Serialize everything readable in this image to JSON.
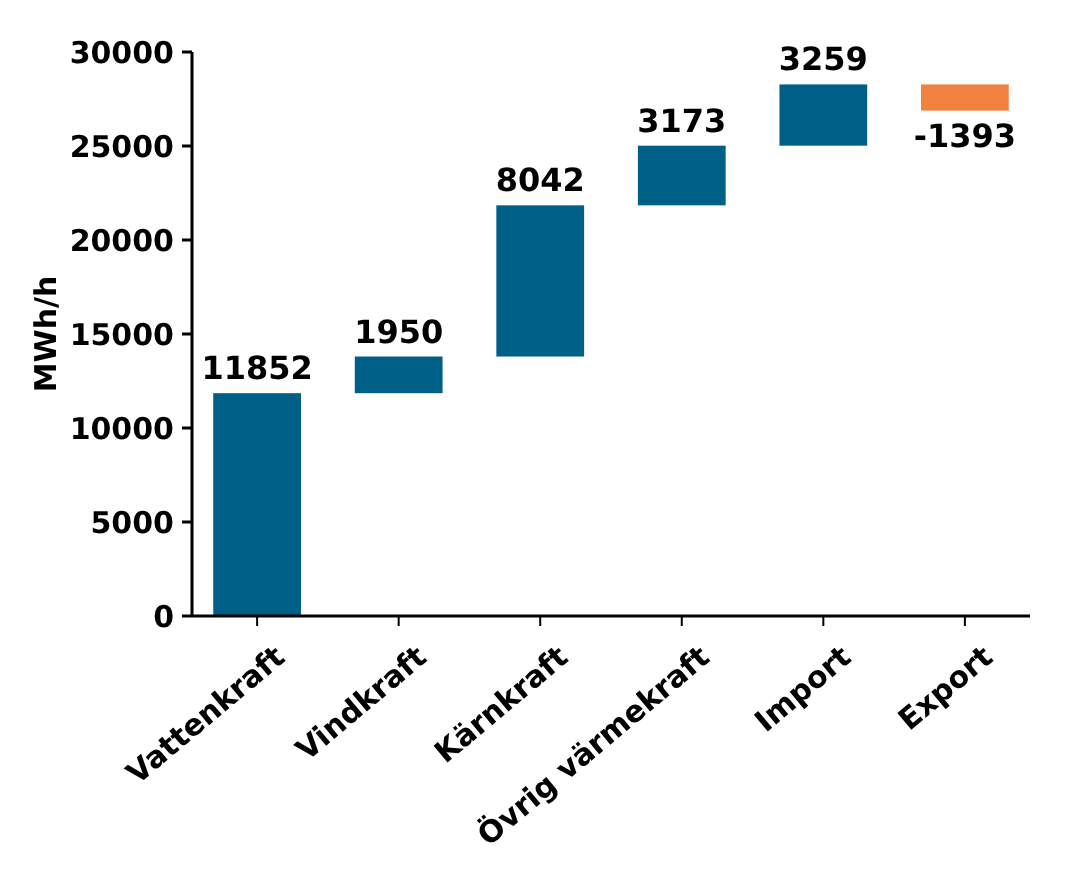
{
  "chart_data": {
    "type": "bar",
    "ylabel": "MWh/h",
    "categories": [
      "Vattenkraft",
      "Vindkraft",
      "Kärnkraft",
      "Övrig värmekraft",
      "Import",
      "Export"
    ],
    "values": [
      11852,
      1950,
      8042,
      3173,
      3259,
      -1393
    ],
    "base": [
      0,
      11852,
      13802,
      21844,
      25017,
      28276
    ],
    "colors": [
      "#005f87",
      "#005f87",
      "#005f87",
      "#005f87",
      "#005f87",
      "#f0813f"
    ],
    "ylim": [
      0,
      30000
    ],
    "yticks": [
      0,
      5000,
      10000,
      15000,
      20000,
      25000,
      30000
    ],
    "data_labels": true
  }
}
